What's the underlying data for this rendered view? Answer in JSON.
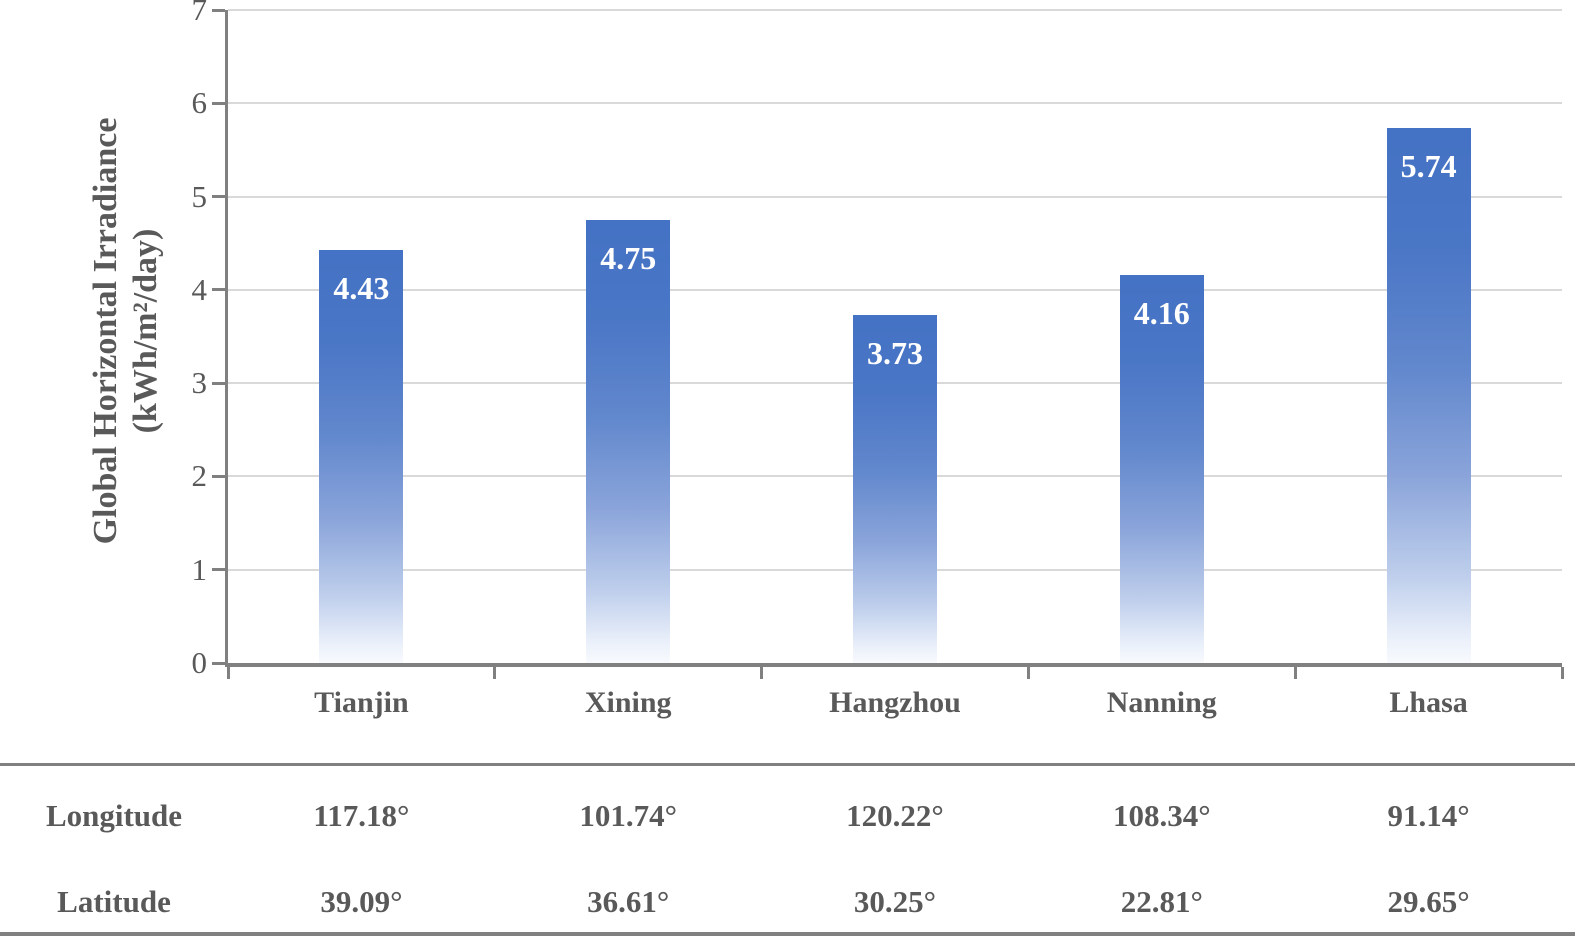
{
  "colors": {
    "bar_top": "#4472C4",
    "bar_fade_bottom": "#F8FAFD",
    "data_label_text": "#FFFFFF",
    "axis_text": "#595959",
    "axis_line": "#808080",
    "gridline": "#D9D9D9"
  },
  "chart_data": {
    "type": "bar",
    "title": "",
    "categories": [
      "Tianjin",
      "Xining",
      "Hangzhou",
      "Nanning",
      "Lhasa"
    ],
    "values": [
      4.43,
      4.75,
      3.73,
      4.16,
      5.74
    ],
    "data_labels": [
      "4.43",
      "4.75",
      "3.73",
      "4.16",
      "5.74"
    ],
    "xlabel": "",
    "ylabel_line1": "Global Horizontal Irradiance",
    "ylabel_line2": "(kWh/m²/day)",
    "ylim": [
      0,
      7
    ],
    "yticks": [
      "0",
      "1",
      "2",
      "3",
      "4",
      "5",
      "6",
      "7"
    ],
    "grid": true,
    "legend_position": "none",
    "bar_fill": "gradient blue fading to white at base",
    "data_label_position": "inside top"
  },
  "table": {
    "rows": [
      {
        "label": "Longitude",
        "values": [
          "117.18°",
          "101.74°",
          "120.22°",
          "108.34°",
          "91.14°"
        ]
      },
      {
        "label": "Latitude",
        "values": [
          "39.09°",
          "36.61°",
          "30.25°",
          "22.81°",
          "29.65°"
        ]
      }
    ]
  }
}
